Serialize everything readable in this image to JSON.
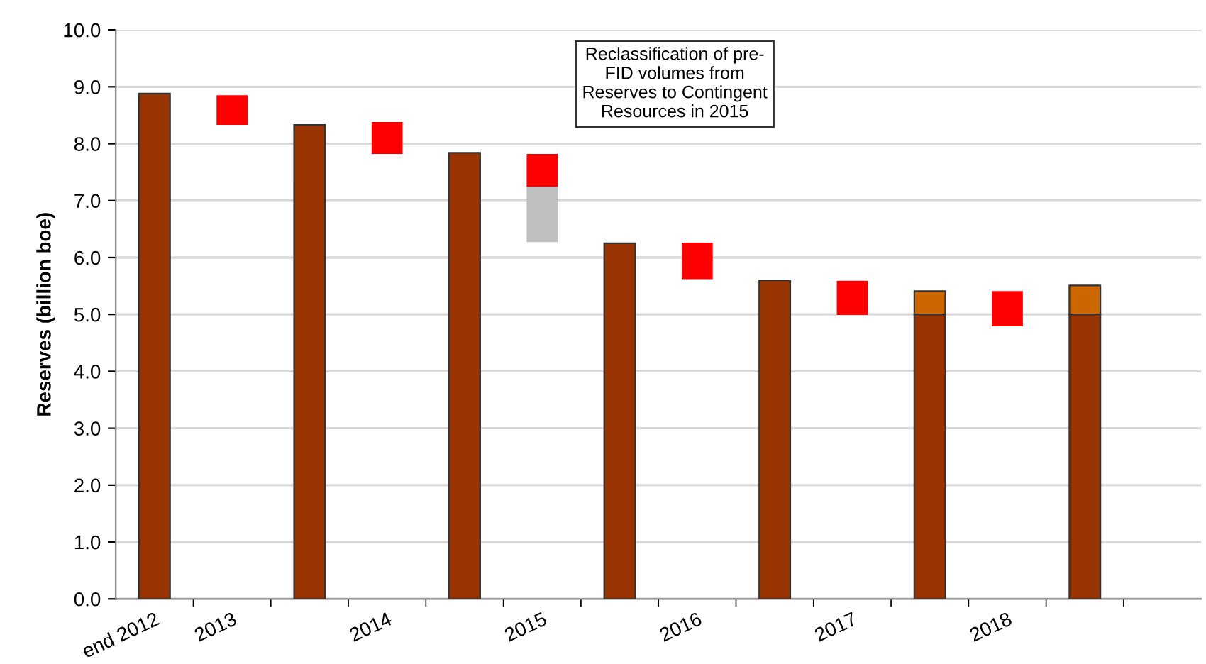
{
  "chart_data": {
    "type": "bar",
    "categories": [
      "end 2012",
      "2013",
      null,
      "2014",
      null,
      "2015",
      null,
      "2016",
      null,
      "2017",
      null,
      "2018",
      null,
      null
    ],
    "series": [
      {
        "color": "#993300",
        "values": [
          8.88,
          null,
          8.33,
          null,
          7.84,
          null,
          6.25,
          null,
          5.6,
          null,
          5.0,
          null,
          5.0,
          null
        ]
      },
      {
        "color": "#cc6600",
        "values": [
          null,
          null,
          null,
          null,
          null,
          null,
          null,
          null,
          null,
          null,
          0.41,
          null,
          0.51,
          null
        ],
        "base": [
          null,
          null,
          null,
          null,
          null,
          null,
          null,
          null,
          null,
          null,
          5.0,
          null,
          5.0,
          null
        ]
      },
      {
        "color": "#ff0000",
        "values": [
          null,
          0.52,
          null,
          0.56,
          null,
          0.58,
          null,
          0.64,
          null,
          0.6,
          null,
          0.62,
          null,
          null
        ],
        "base": [
          null,
          8.33,
          null,
          7.82,
          null,
          7.24,
          null,
          5.62,
          null,
          4.99,
          null,
          4.79,
          null,
          null
        ]
      },
      {
        "color": "#c0c0c0",
        "values": [
          null,
          null,
          null,
          null,
          null,
          0.97,
          null,
          null,
          null,
          null,
          null,
          null,
          null,
          null
        ],
        "base": [
          null,
          null,
          null,
          null,
          null,
          6.27,
          null,
          null,
          null,
          null,
          null,
          null,
          null,
          null
        ]
      }
    ],
    "ylabel": "Reserves (billion boe)",
    "ylim": [
      0,
      10
    ],
    "yticks": [
      {
        "value": 0,
        "label": "0.0"
      },
      {
        "value": 1,
        "label": "1.0"
      },
      {
        "value": 2,
        "label": "2.0"
      },
      {
        "value": 3,
        "label": "3.0"
      },
      {
        "value": 4,
        "label": "4.0"
      },
      {
        "value": 5,
        "label": "5.0"
      },
      {
        "value": 6,
        "label": "6.0"
      },
      {
        "value": 7,
        "label": "7.0"
      },
      {
        "value": 8,
        "label": "8.0"
      },
      {
        "value": 9,
        "label": "9.0"
      },
      {
        "value": 10,
        "label": "10.0"
      }
    ],
    "grid": "y",
    "annotations": [
      "Reclassification of pre-\nFID volumes from\nReserves to Contingent\nResources in 2015"
    ]
  }
}
